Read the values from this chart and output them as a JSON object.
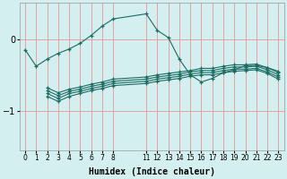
{
  "xlabel": "Humidex (Indice chaleur)",
  "bg_color": "#d4efef",
  "grid_color": "#e8a0a0",
  "line_color": "#1a6b62",
  "xlim": [
    -0.5,
    23.5
  ],
  "ylim": [
    -1.55,
    0.5
  ],
  "yticks": [
    0,
    -1
  ],
  "xticks": [
    0,
    1,
    2,
    3,
    4,
    5,
    6,
    7,
    8,
    11,
    12,
    13,
    14,
    15,
    16,
    17,
    18,
    19,
    20,
    21,
    22,
    23
  ],
  "lines": [
    {
      "x": [
        0,
        1,
        2,
        3,
        4,
        5,
        6,
        7,
        8,
        11,
        12,
        13,
        14,
        15,
        16,
        17,
        18,
        19,
        20,
        21,
        22,
        23
      ],
      "y": [
        -0.15,
        -0.38,
        -0.28,
        -0.2,
        -0.14,
        -0.06,
        0.05,
        0.18,
        0.28,
        0.35,
        0.12,
        0.02,
        -0.28,
        -0.5,
        -0.6,
        -0.55,
        -0.47,
        -0.43,
        -0.37,
        -0.37,
        -0.4,
        -0.45
      ]
    },
    {
      "x": [
        2,
        3,
        4,
        5,
        6,
        7,
        8,
        11,
        12,
        13,
        14,
        15,
        16,
        17,
        18,
        19,
        20,
        21,
        22,
        23
      ],
      "y": [
        -0.68,
        -0.75,
        -0.7,
        -0.67,
        -0.63,
        -0.6,
        -0.56,
        -0.53,
        -0.5,
        -0.48,
        -0.46,
        -0.44,
        -0.41,
        -0.41,
        -0.38,
        -0.36,
        -0.36,
        -0.35,
        -0.4,
        -0.47
      ]
    },
    {
      "x": [
        2,
        3,
        4,
        5,
        6,
        7,
        8,
        11,
        12,
        13,
        14,
        15,
        16,
        17,
        18,
        19,
        20,
        21,
        22,
        23
      ],
      "y": [
        -0.72,
        -0.79,
        -0.73,
        -0.7,
        -0.66,
        -0.63,
        -0.59,
        -0.56,
        -0.53,
        -0.51,
        -0.49,
        -0.46,
        -0.44,
        -0.44,
        -0.41,
        -0.39,
        -0.39,
        -0.38,
        -0.43,
        -0.5
      ]
    },
    {
      "x": [
        2,
        3,
        4,
        5,
        6,
        7,
        8,
        11,
        12,
        13,
        14,
        15,
        16,
        17,
        18,
        19,
        20,
        21,
        22,
        23
      ],
      "y": [
        -0.76,
        -0.83,
        -0.76,
        -0.73,
        -0.69,
        -0.66,
        -0.62,
        -0.59,
        -0.56,
        -0.54,
        -0.52,
        -0.49,
        -0.47,
        -0.47,
        -0.44,
        -0.42,
        -0.42,
        -0.41,
        -0.46,
        -0.53
      ]
    },
    {
      "x": [
        2,
        3,
        4,
        5,
        6,
        7,
        8,
        11,
        12,
        13,
        14,
        15,
        16,
        17,
        18,
        19,
        20,
        21,
        22,
        23
      ],
      "y": [
        -0.8,
        -0.87,
        -0.8,
        -0.76,
        -0.72,
        -0.69,
        -0.65,
        -0.62,
        -0.59,
        -0.57,
        -0.55,
        -0.52,
        -0.5,
        -0.5,
        -0.47,
        -0.45,
        -0.44,
        -0.43,
        -0.48,
        -0.56
      ]
    }
  ]
}
